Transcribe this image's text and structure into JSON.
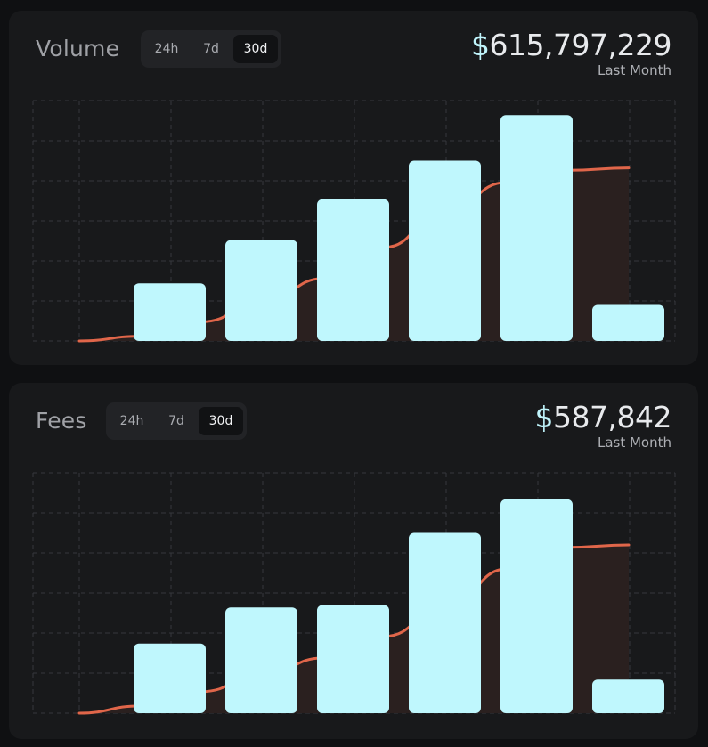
{
  "colors": {
    "bar": "#bff7fd",
    "line": "#e0664a",
    "area": "#2a201f",
    "grid": "#36383c",
    "currency_symbol": "#bff4fb"
  },
  "cards": [
    {
      "title": "Volume",
      "tabs": [
        {
          "label": "24h",
          "active": false
        },
        {
          "label": "7d",
          "active": false
        },
        {
          "label": "30d",
          "active": true
        }
      ],
      "currency": "$",
      "amount": "615,797,229",
      "period": "Last Month"
    },
    {
      "title": "Fees",
      "tabs": [
        {
          "label": "24h",
          "active": false
        },
        {
          "label": "7d",
          "active": false
        },
        {
          "label": "30d",
          "active": true
        }
      ],
      "currency": "$",
      "amount": "587,842",
      "period": "Last Month"
    }
  ],
  "chart_data": [
    {
      "type": "bar",
      "grid": true,
      "ylim": [
        0,
        100
      ],
      "bar_values": [
        24,
        42,
        59,
        75,
        94,
        15
      ],
      "line_values": [
        0,
        2,
        8,
        16,
        26,
        39,
        54,
        66,
        71,
        72
      ]
    },
    {
      "type": "bar",
      "grid": true,
      "ylim": [
        0,
        100
      ],
      "bar_values": [
        29,
        44,
        45,
        75,
        89,
        14
      ],
      "line_values": [
        0,
        3,
        9,
        16,
        23,
        32,
        44,
        60,
        69,
        70
      ]
    }
  ]
}
